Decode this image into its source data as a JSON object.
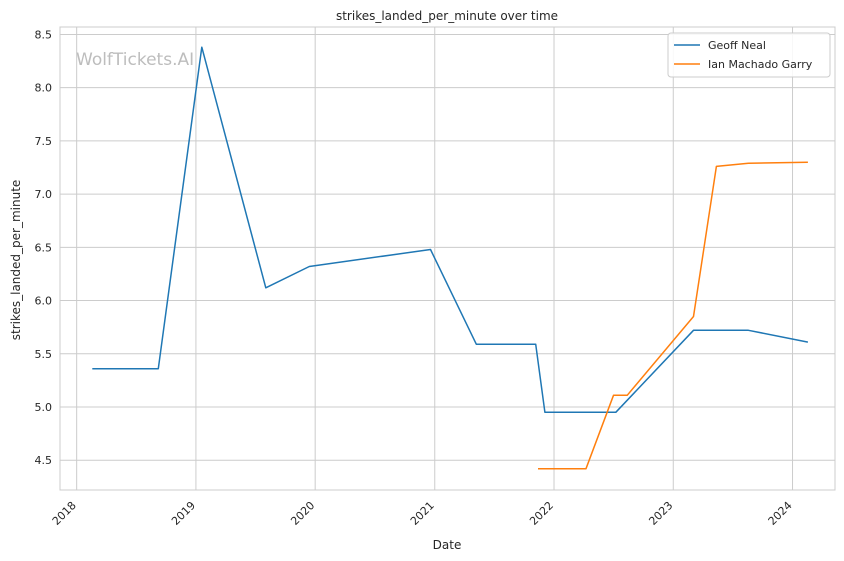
{
  "chart_data": {
    "type": "line",
    "title": "strikes_landed_per_minute over time",
    "xlabel": "Date",
    "ylabel": "strikes_landed_per_minute",
    "watermark": "WolfTickets.AI",
    "xlim": [
      "2017-11-11",
      "2024-05-10"
    ],
    "ylim": [
      4.22,
      8.57
    ],
    "x_ticks": [
      "2018",
      "2019",
      "2020",
      "2021",
      "2022",
      "2023",
      "2024"
    ],
    "y_ticks": [
      "4.5",
      "5.0",
      "5.5",
      "6.0",
      "6.5",
      "7.0",
      "7.5",
      "8.0",
      "8.5"
    ],
    "grid": true,
    "legend_position": "top-right",
    "series": [
      {
        "name": "Geoff Neal",
        "color": "#1f77b4",
        "points": [
          [
            "2018-02-18",
            5.36
          ],
          [
            "2018-09-08",
            5.36
          ],
          [
            "2019-01-19",
            8.38
          ],
          [
            "2019-08-03",
            6.12
          ],
          [
            "2019-12-14",
            6.32
          ],
          [
            "2020-12-19",
            6.48
          ],
          [
            "2021-05-08",
            5.59
          ],
          [
            "2021-11-06",
            5.59
          ],
          [
            "2021-12-04",
            4.95
          ],
          [
            "2022-07-09",
            4.95
          ],
          [
            "2023-03-04",
            5.72
          ],
          [
            "2023-08-19",
            5.72
          ],
          [
            "2024-02-17",
            5.61
          ]
        ]
      },
      {
        "name": "Ian Machado Garry",
        "color": "#ff7f0e",
        "points": [
          [
            "2021-11-13",
            4.42
          ],
          [
            "2022-04-09",
            4.42
          ],
          [
            "2022-07-02",
            5.11
          ],
          [
            "2022-08-13",
            5.11
          ],
          [
            "2023-03-04",
            5.85
          ],
          [
            "2023-05-13",
            7.26
          ],
          [
            "2023-08-19",
            7.29
          ],
          [
            "2024-02-17",
            7.3
          ]
        ]
      }
    ]
  }
}
